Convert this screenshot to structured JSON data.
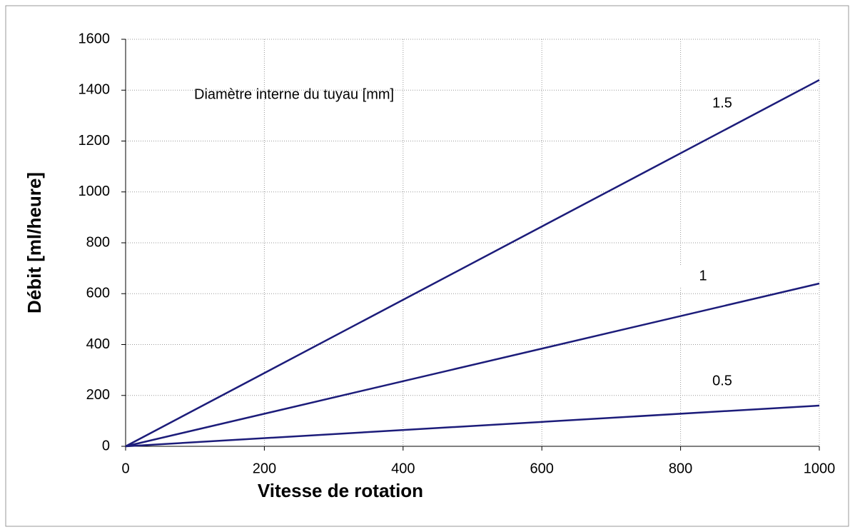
{
  "chart_data": {
    "type": "line",
    "xlabel": "Vitesse de rotation",
    "ylabel": "Débit [ml/heure]",
    "annotation": "Diamètre interne du tuyau [mm]",
    "x": [
      0,
      1000
    ],
    "series": [
      {
        "name": "1.5",
        "color": "#1c1c7a",
        "values": [
          0,
          1440
        ]
      },
      {
        "name": "1",
        "color": "#1c1c7a",
        "values": [
          0,
          640
        ]
      },
      {
        "name": "0.5",
        "color": "#1c1c7a",
        "values": [
          0,
          160
        ]
      }
    ],
    "xlim": [
      0,
      1000
    ],
    "xticks": [
      0,
      200,
      400,
      600,
      800,
      1000
    ],
    "ylim": [
      0,
      1600
    ],
    "yticks": [
      0,
      200,
      400,
      600,
      800,
      1000,
      1200,
      1400,
      1600
    ],
    "grid": true
  }
}
